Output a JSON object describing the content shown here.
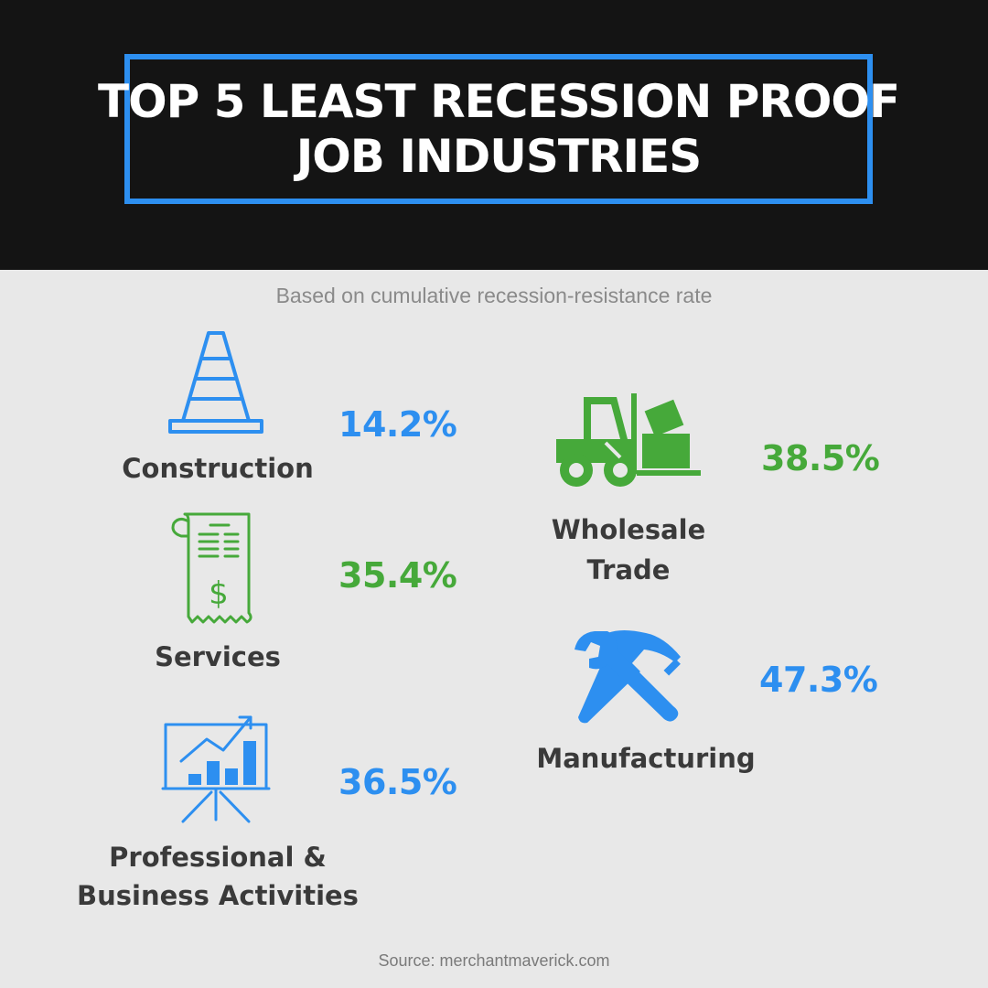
{
  "header": {
    "title_line1": "TOP 5 LEAST RECESSION PROOF",
    "title_line2": "JOB INDUSTRIES"
  },
  "subtitle": "Based on cumulative recession-resistance rate",
  "colors": {
    "blue": "#2d8ff0",
    "green": "#46a93a",
    "dark": "#141414"
  },
  "industries": [
    {
      "label": "Construction",
      "value": "14.2%",
      "icon": "traffic-cone-icon",
      "color": "blue"
    },
    {
      "label": "Services",
      "value": "35.4%",
      "icon": "receipt-icon",
      "color": "green"
    },
    {
      "label_line1": "Professional &",
      "label_line2": "Business Activities",
      "value": "36.5%",
      "icon": "presentation-chart-icon",
      "color": "blue"
    },
    {
      "label_line1": "Wholesale",
      "label_line2": "Trade",
      "value": "38.5%",
      "icon": "forklift-icon",
      "color": "green"
    },
    {
      "label": "Manufacturing",
      "value": "47.3%",
      "icon": "wrench-hammer-icon",
      "color": "blue"
    }
  ],
  "source": "Source: merchantmaverick.com"
}
